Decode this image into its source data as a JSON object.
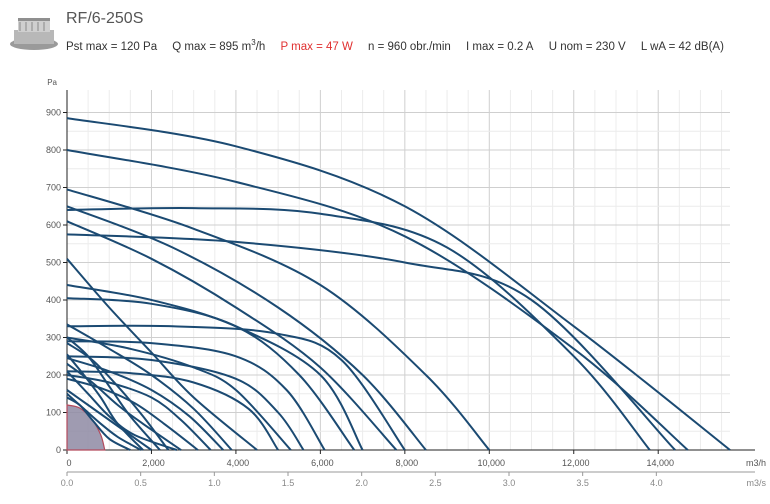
{
  "header": {
    "title": "RF/6-250S",
    "specs": {
      "pst_max": "Pst max = 120 Pa",
      "q_max": "Q max = 895 m",
      "q_unit_sup": "3",
      "q_unit_tail": "/h",
      "p_max": "P max = 47 W",
      "n": "n = 960 obr./min",
      "i_max": "I max = 0.2 A",
      "u_nom": "U nom = 230 V",
      "lwa": "L wA = 42 dB(A)"
    }
  },
  "colors": {
    "curve": "#1b4a72",
    "grid": "#d9d9d9",
    "highlight_fill": "#8e8aa3",
    "highlight_stroke": "#b34a5c",
    "red": "#e03030"
  },
  "chart_data": {
    "type": "line",
    "title": "",
    "ylabel": "Pa",
    "xlabel": "m3/h",
    "x2label": "m3/s",
    "xlim": [
      0,
      15700
    ],
    "ylim": [
      0,
      960
    ],
    "x_ticks": [
      0,
      2000,
      4000,
      6000,
      8000,
      10000,
      12000,
      14000
    ],
    "x_tick_labels": [
      "0",
      "2,000",
      "4,000",
      "6,000",
      "8,000",
      "10,000",
      "12,000",
      "14,000"
    ],
    "x2_ticks": [
      0,
      0.5,
      1.0,
      1.5,
      2.0,
      2.5,
      3.0,
      3.5,
      4.0
    ],
    "x2_tick_labels": [
      "0.0",
      "0.5",
      "1.0",
      "1.5",
      "2.0",
      "2.5",
      "3.0",
      "3.5",
      "4.0"
    ],
    "y_ticks": [
      0,
      100,
      200,
      300,
      400,
      500,
      600,
      700,
      800,
      900
    ],
    "y_tick_labels": [
      "0",
      "100",
      "200",
      "300",
      "400",
      "500",
      "600",
      "700",
      "800",
      "900"
    ],
    "grid": true,
    "highlighted_series": {
      "name": "RF/6-250S",
      "x": [
        0,
        300,
        600,
        800,
        895
      ],
      "y": [
        120,
        112,
        80,
        40,
        0
      ]
    },
    "series": [
      {
        "x": [
          0,
          4000,
          8000,
          12000,
          15700
        ],
        "y": [
          885,
          810,
          650,
          330,
          0
        ]
      },
      {
        "x": [
          0,
          4000,
          8000,
          12000,
          14700
        ],
        "y": [
          800,
          715,
          570,
          270,
          0
        ]
      },
      {
        "x": [
          0,
          3000,
          6000,
          9000,
          12000,
          13800
        ],
        "y": [
          640,
          645,
          630,
          540,
          250,
          0
        ]
      },
      {
        "x": [
          0,
          4000,
          8000,
          11000,
          14400
        ],
        "y": [
          575,
          555,
          500,
          400,
          0
        ]
      },
      {
        "x": [
          0,
          3000,
          6000,
          8500,
          10000
        ],
        "y": [
          695,
          590,
          440,
          200,
          0
        ]
      },
      {
        "x": [
          0,
          2500,
          5000,
          7000,
          8500
        ],
        "y": [
          650,
          540,
          380,
          200,
          0
        ]
      },
      {
        "x": [
          0,
          2000,
          4000,
          6000,
          7800
        ],
        "y": [
          610,
          510,
          380,
          220,
          0
        ]
      },
      {
        "x": [
          0,
          2000,
          4000,
          6000,
          7000
        ],
        "y": [
          440,
          400,
          330,
          200,
          0
        ]
      },
      {
        "x": [
          0,
          2000,
          4000,
          5500,
          6800
        ],
        "y": [
          405,
          390,
          330,
          200,
          0
        ]
      },
      {
        "x": [
          0,
          2500,
          5000,
          6500,
          8000
        ],
        "y": [
          330,
          330,
          310,
          240,
          0
        ]
      },
      {
        "x": [
          0,
          2000,
          4000,
          5200,
          6100
        ],
        "y": [
          290,
          285,
          250,
          160,
          0
        ]
      },
      {
        "x": [
          0,
          2000,
          4000,
          5000,
          5600
        ],
        "y": [
          250,
          240,
          190,
          100,
          0
        ]
      },
      {
        "x": [
          0,
          1500,
          3000,
          4000,
          5300
        ],
        "y": [
          300,
          270,
          220,
          160,
          0
        ]
      },
      {
        "x": [
          0,
          1500,
          3000,
          4300,
          5000
        ],
        "y": [
          210,
          205,
          180,
          110,
          0
        ]
      },
      {
        "x": [
          0,
          1000,
          2000,
          3000,
          4500
        ],
        "y": [
          510,
          380,
          260,
          140,
          0
        ]
      },
      {
        "x": [
          0,
          1000,
          2000,
          3000,
          3900
        ],
        "y": [
          335,
          270,
          200,
          110,
          0
        ]
      },
      {
        "x": [
          0,
          1000,
          2000,
          2900,
          3700
        ],
        "y": [
          245,
          210,
          160,
          90,
          0
        ]
      },
      {
        "x": [
          0,
          1000,
          2000,
          2700,
          3400
        ],
        "y": [
          200,
          180,
          140,
          80,
          0
        ]
      },
      {
        "x": [
          0,
          800,
          1600,
          2300,
          3100
        ],
        "y": [
          190,
          165,
          125,
          70,
          0
        ]
      },
      {
        "x": [
          0,
          600,
          1200,
          1800,
          2700
        ],
        "y": [
          230,
          180,
          120,
          70,
          0
        ]
      },
      {
        "x": [
          0,
          500,
          1000,
          1600,
          2600
        ],
        "y": [
          210,
          150,
          90,
          40,
          0
        ]
      },
      {
        "x": [
          0,
          500,
          1000,
          1500,
          2000
        ],
        "y": [
          160,
          120,
          80,
          40,
          0
        ]
      },
      {
        "x": [
          0,
          400,
          800,
          1200,
          1750
        ],
        "y": [
          150,
          110,
          70,
          35,
          0
        ]
      },
      {
        "x": [
          0,
          300,
          600,
          1000,
          1500
        ],
        "y": [
          140,
          120,
          80,
          30,
          0
        ]
      },
      {
        "x": [
          0,
          400,
          800,
          1200,
          1800
        ],
        "y": [
          255,
          200,
          140,
          70,
          0
        ]
      },
      {
        "x": [
          0,
          600,
          1200,
          1800,
          2400
        ],
        "y": [
          285,
          240,
          170,
          90,
          0
        ]
      },
      {
        "x": [
          0,
          500,
          1000,
          1500,
          2200
        ],
        "y": [
          300,
          250,
          170,
          90,
          0
        ]
      }
    ]
  }
}
